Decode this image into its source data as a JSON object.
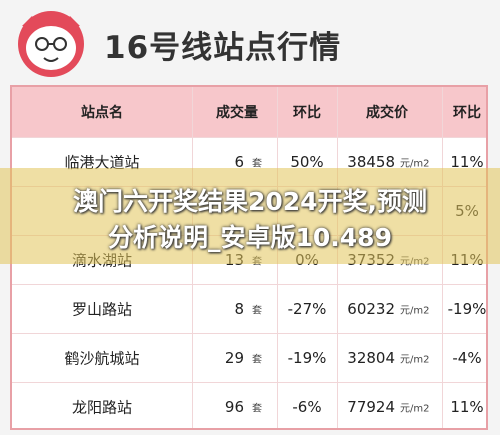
{
  "header": {
    "title": "16号线站点行情"
  },
  "table": {
    "columns": [
      "站点名",
      "成交量",
      "环比",
      "成交价",
      "环比"
    ],
    "rows": [
      {
        "name": "临港大道站",
        "volume": "6",
        "volume_unit": "套",
        "mom": "50%",
        "price": "38458",
        "price_unit": "元/m2",
        "price_mom": "11%"
      },
      {
        "price_mom": "5%"
      },
      {
        "name": "滴水湖站",
        "volume": "13",
        "volume_unit": "套",
        "mom": "0%",
        "price": "37352",
        "price_unit": "元/m2",
        "price_mom": "11%"
      },
      {
        "name": "罗山路站",
        "volume": "8",
        "volume_unit": "套",
        "mom": "-27%",
        "price": "60232",
        "price_unit": "元/m2",
        "price_mom": "-19%"
      },
      {
        "name": "鹤沙航城站",
        "volume": "29",
        "volume_unit": "套",
        "mom": "-19%",
        "price": "32804",
        "price_unit": "元/m2",
        "price_mom": "-4%"
      },
      {
        "name": "龙阳路站",
        "volume": "96",
        "volume_unit": "套",
        "mom": "-6%",
        "price": "77924",
        "price_unit": "元/m2",
        "price_mom": "11%"
      }
    ]
  },
  "overlay": {
    "lines": [
      "澳门六开奖结果2024开奖,预测",
      "分析说明_安卓版10.489"
    ]
  }
}
